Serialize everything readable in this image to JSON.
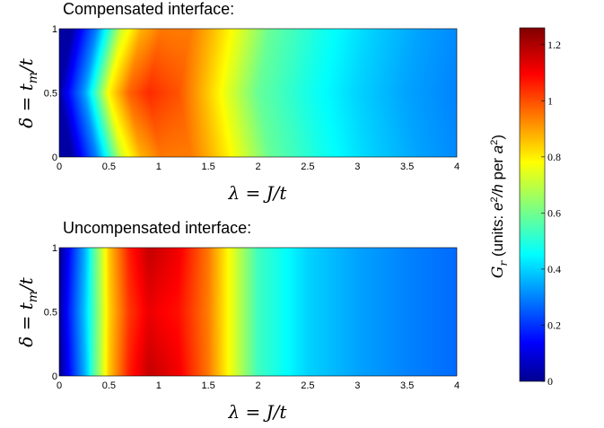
{
  "panels": [
    {
      "title": "Compensated interface:"
    },
    {
      "title": "Uncompensated interface:"
    }
  ],
  "colorbar": {
    "label_prefix": "G",
    "label_sub": "r",
    "label_rest": " (units: e²/h per a²)",
    "ticks": [
      "0",
      "0.2",
      "0.4",
      "0.6",
      "0.8",
      "1",
      "1.2"
    ]
  },
  "chart_data": [
    {
      "type": "heatmap",
      "title": "Compensated interface:",
      "xlabel": "λ = J/t",
      "ylabel": "δ = t_m/t",
      "xlim": [
        0,
        4
      ],
      "ylim": [
        0,
        1
      ],
      "xticks": [
        "0",
        "0.5",
        "1",
        "1.5",
        "2",
        "2.5",
        "3",
        "3.5",
        "4"
      ],
      "yticks": [
        "0",
        "0.5",
        "1"
      ],
      "colormap": "jet",
      "clim": [
        0,
        1.26
      ],
      "peak": {
        "lambda": 0.9,
        "delta": 0.5,
        "value": 1.05
      },
      "profile_lambda": [
        0,
        0.1,
        0.25,
        0.5,
        0.7,
        0.9,
        1.2,
        1.5,
        2.0,
        2.5,
        3.0,
        3.5,
        4.0
      ],
      "profile_G": [
        0.05,
        0.18,
        0.35,
        0.8,
        0.98,
        1.05,
        1.0,
        0.85,
        0.6,
        0.5,
        0.42,
        0.36,
        0.32
      ]
    },
    {
      "type": "heatmap",
      "title": "Uncompensated interface:",
      "xlabel": "λ = J/t",
      "ylabel": "δ = t_m/t",
      "xlim": [
        0,
        4
      ],
      "ylim": [
        0,
        1
      ],
      "xticks": [
        "0",
        "0.5",
        "1",
        "1.5",
        "2",
        "2.5",
        "3",
        "3.5",
        "4"
      ],
      "yticks": [
        "0",
        "0.5",
        "1"
      ],
      "colormap": "jet",
      "clim": [
        0,
        1.26
      ],
      "peak": {
        "lambda": 0.95,
        "delta_edges": [
          0,
          1
        ],
        "value": 1.2
      },
      "profile_lambda": [
        0,
        0.1,
        0.25,
        0.5,
        0.7,
        0.9,
        1.2,
        1.5,
        2.0,
        2.5,
        3.0,
        3.5,
        4.0
      ],
      "profile_G": [
        0.05,
        0.2,
        0.4,
        0.85,
        1.05,
        1.15,
        1.1,
        0.95,
        0.55,
        0.42,
        0.36,
        0.32,
        0.29
      ]
    }
  ]
}
